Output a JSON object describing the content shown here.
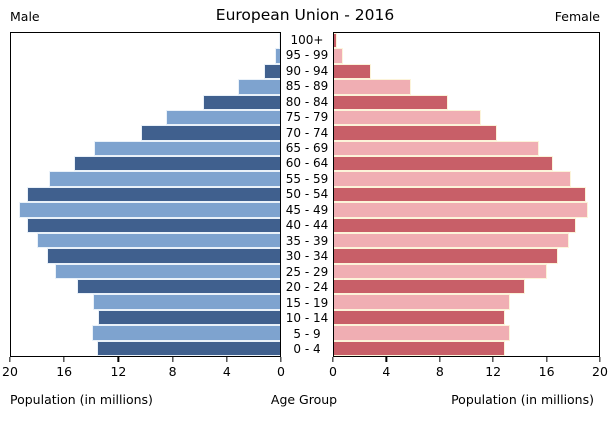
{
  "title": "European Union - 2016",
  "left_header": "Male",
  "right_header": "Female",
  "xlabel_left": "Population (in millions)",
  "xlabel_center": "Age Group",
  "xlabel_right": "Population (in millions)",
  "axis_ticks_left": [
    "20",
    "16",
    "12",
    "8",
    "4",
    "0"
  ],
  "axis_ticks_right": [
    "0",
    "4",
    "8",
    "12",
    "16",
    "20"
  ],
  "colors": {
    "male_dark": "#40608e",
    "male_light": "#7ea3cf",
    "female_dark": "#c85f68",
    "female_light": "#f0aeb3",
    "male_gap": "#e9f1f9",
    "female_gap": "#fcf4da",
    "frame": "#000000",
    "background": "#ffffff"
  },
  "chart_data": {
    "type": "bar",
    "subtype": "population-pyramid",
    "title": "European Union - 2016",
    "xlabel": "Population (in millions)",
    "ylabel": "Age Group",
    "xlim": [
      0,
      20
    ],
    "grid": false,
    "legend_position": "headers-top",
    "categories_order": "top-to-bottom (oldest first)",
    "categories": [
      "100+",
      "95 - 99",
      "90 - 94",
      "85 - 89",
      "80 - 84",
      "75 - 79",
      "70 - 74",
      "65 - 69",
      "60 - 64",
      "55 - 59",
      "50 - 54",
      "45 - 49",
      "40 - 44",
      "35 - 39",
      "30 - 34",
      "25 - 29",
      "20 - 24",
      "15 - 19",
      "10 - 14",
      "5 - 9",
      "0 - 4"
    ],
    "series": [
      {
        "name": "Male",
        "side": "left",
        "values": [
          0.05,
          0.4,
          1.2,
          3.1,
          5.7,
          8.5,
          10.3,
          13.8,
          15.3,
          17.2,
          18.8,
          19.4,
          18.8,
          18.1,
          17.3,
          16.7,
          15.1,
          13.9,
          13.5,
          14.0,
          13.6
        ]
      },
      {
        "name": "Female",
        "side": "right",
        "values": [
          0.2,
          0.7,
          2.8,
          5.8,
          8.6,
          11.1,
          12.3,
          15.5,
          16.5,
          17.9,
          19.0,
          19.2,
          18.3,
          17.7,
          16.9,
          16.1,
          14.4,
          13.3,
          12.9,
          13.3,
          12.9
        ]
      }
    ]
  }
}
